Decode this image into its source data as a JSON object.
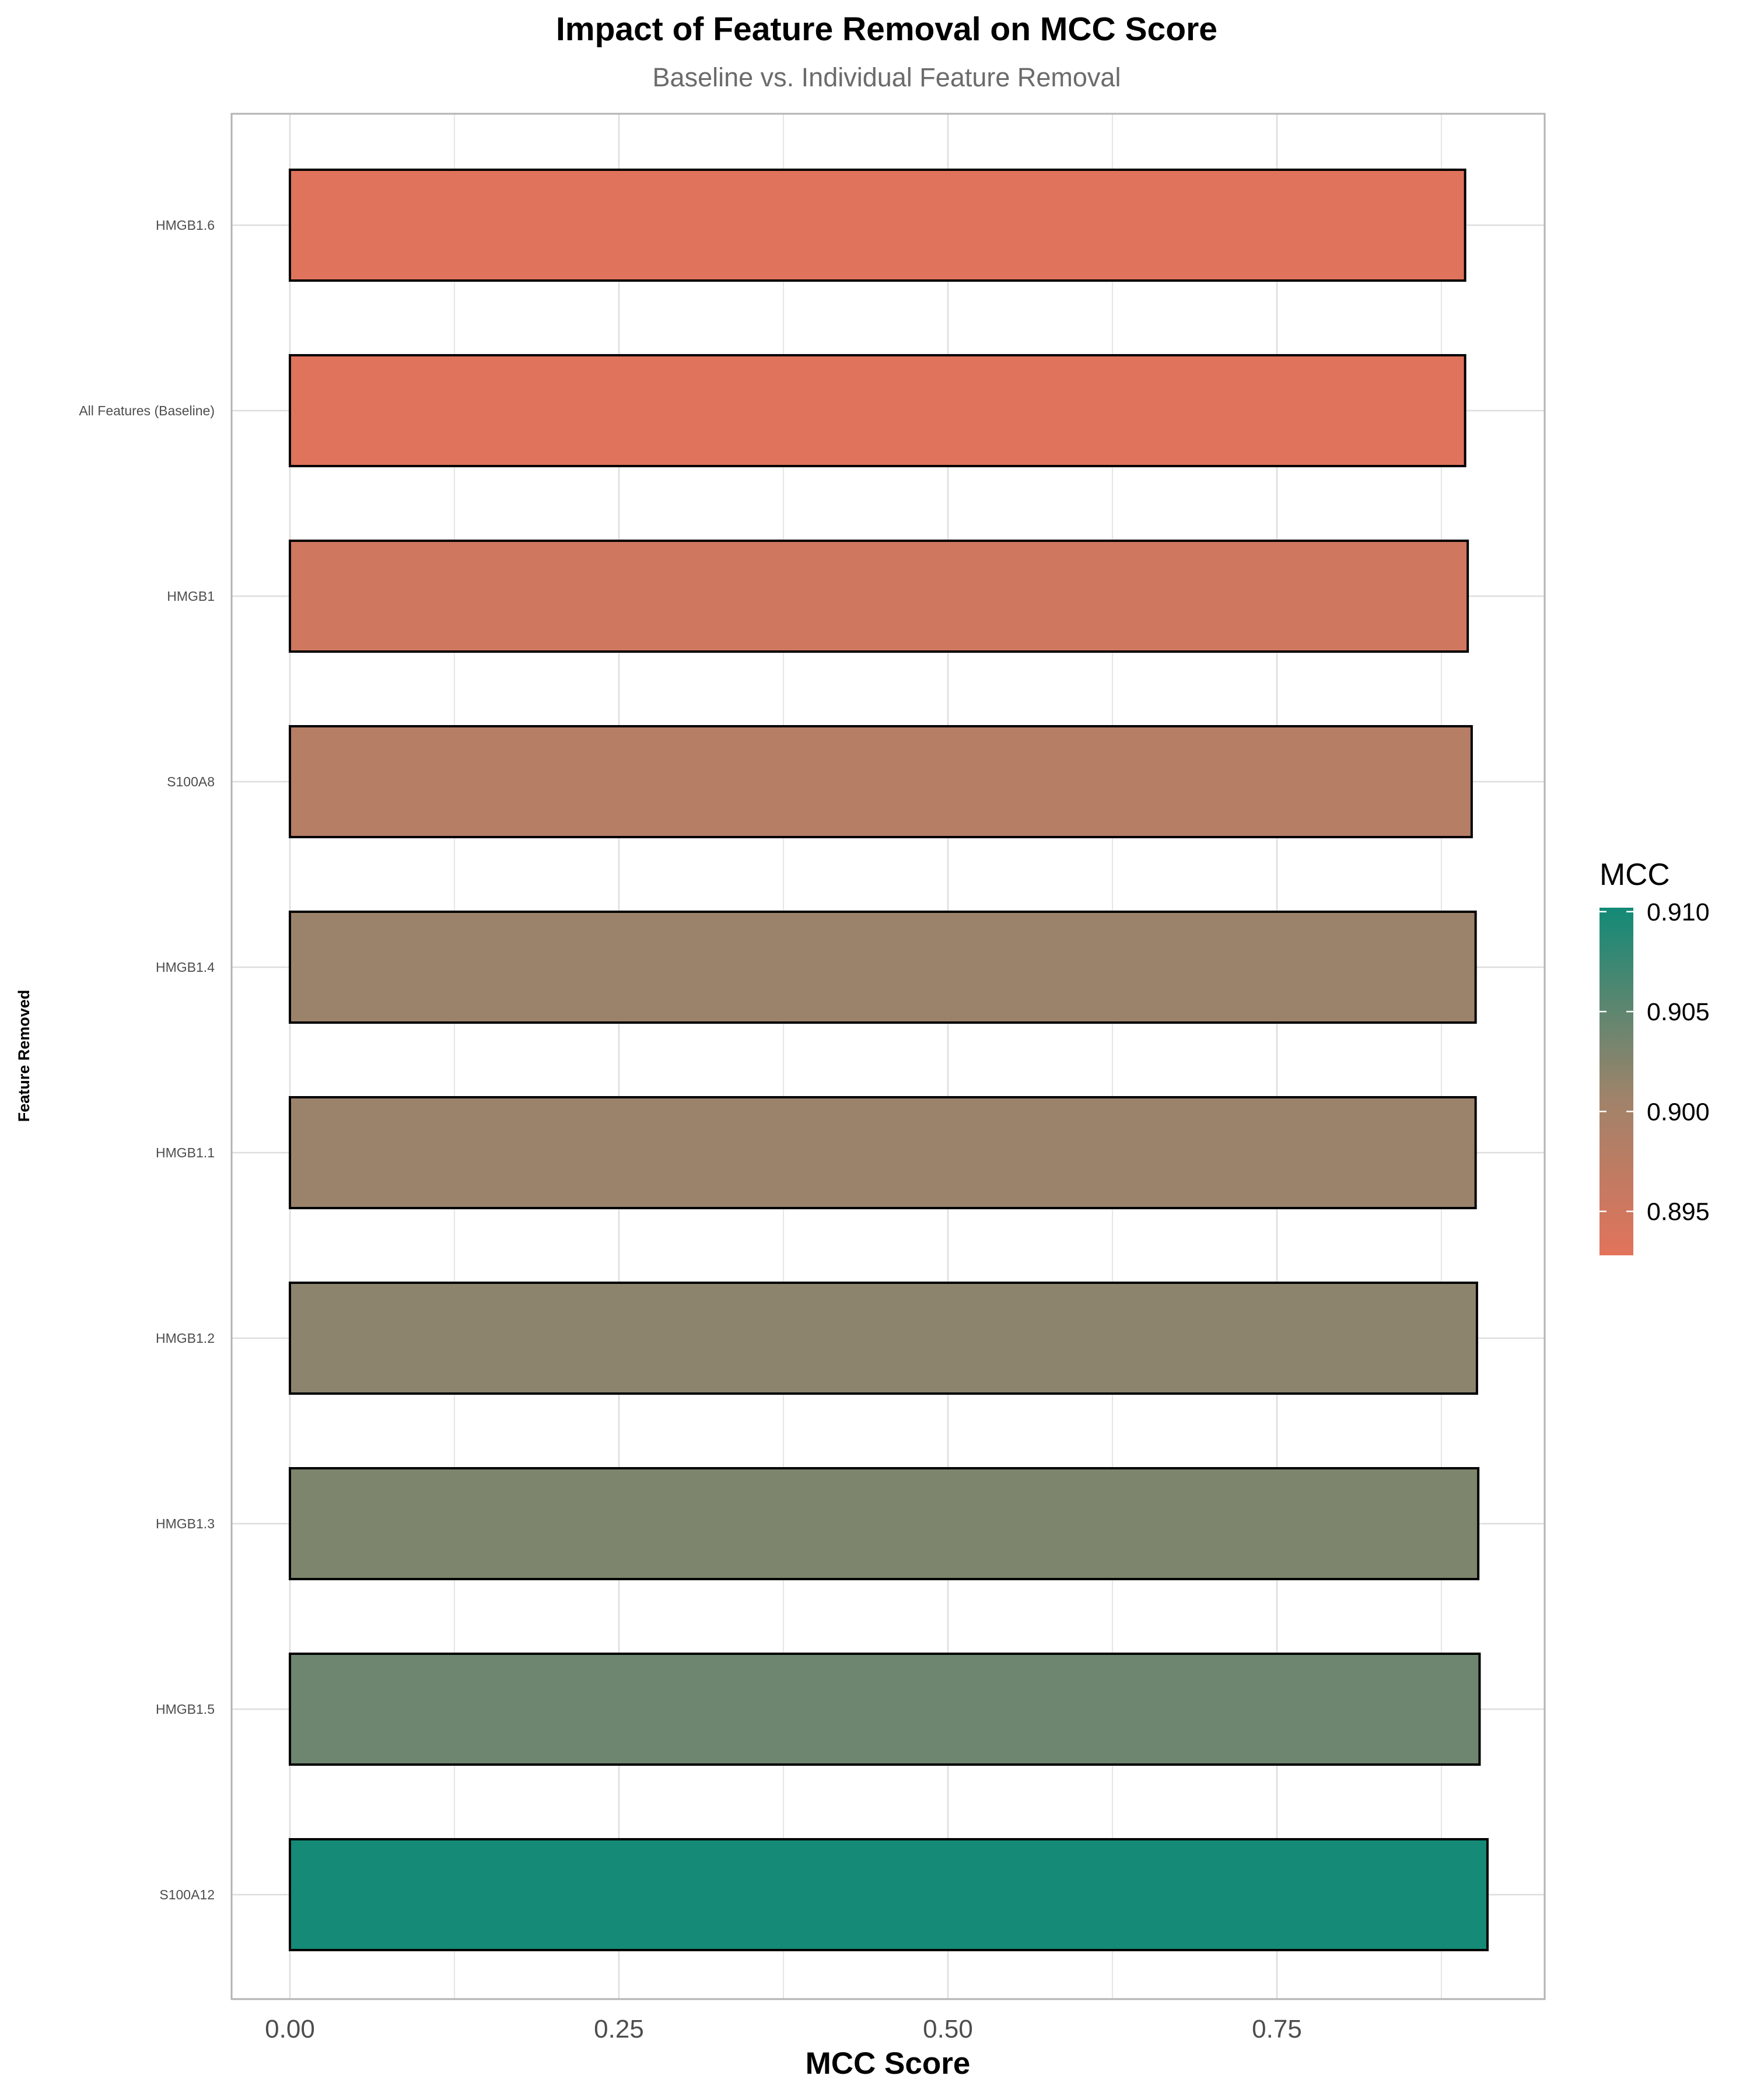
{
  "chart_data": {
    "type": "bar",
    "orientation": "horizontal",
    "title": "Impact of Feature Removal on MCC Score",
    "subtitle": "Baseline vs. Individual Feature Removal",
    "xlabel": "MCC Score",
    "ylabel": "Feature Removed",
    "xlim": [
      -0.131,
      3.838
    ],
    "x_ticks": [
      0.0,
      0.25,
      0.5,
      0.75
    ],
    "x_tick_labels": [
      "0.00",
      "0.25",
      "0.50",
      "0.75"
    ],
    "grid": true,
    "categories": [
      "HMGB1.6",
      "All Features (Baseline)",
      "HMGB1",
      "S100A8",
      "HMGB1.4",
      "HMGB1.1",
      "HMGB1.2",
      "HMGB1.3",
      "HMGB1.5",
      "S100A12"
    ],
    "values": [
      0.893,
      0.893,
      0.895,
      0.898,
      0.901,
      0.901,
      0.902,
      0.903,
      0.904,
      0.91
    ],
    "legend": {
      "title": "MCC",
      "placement": "right",
      "ticks": [
        0.895,
        0.9,
        0.905,
        0.91
      ],
      "tick_labels": [
        "0.895",
        "0.900",
        "0.905",
        "0.910"
      ],
      "range": [
        0.8928,
        0.9102
      ],
      "color_low": "#e2735b",
      "color_high": "#128a77"
    }
  },
  "colors": {
    "bar_outline": "#000000",
    "grid": "#dedede",
    "panel_border": "#b3b3b3",
    "subtitle": "#6b6b6b"
  }
}
